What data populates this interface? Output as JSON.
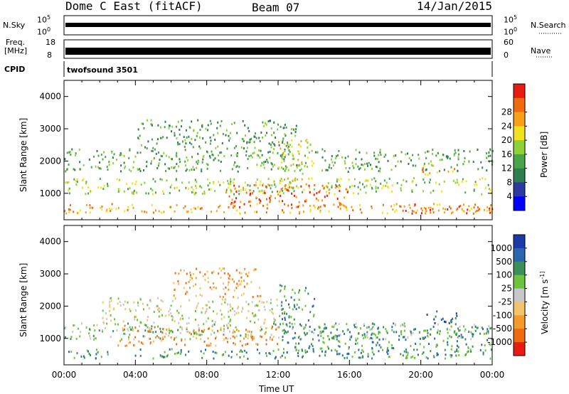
{
  "header": {
    "station": "Dome C East (fitACF)",
    "beam": "Beam 07",
    "date": "14/Jan/2015"
  },
  "side_labels": {
    "nsky": "N.Sky",
    "nsky_top": "10^5",
    "nsky_bottom": "10^0",
    "nsearch": "N.Search",
    "nsearch_top": "10^5",
    "nsearch_bottom": "10^0",
    "freq_line1": "Freq.",
    "freq_line2": "[MHz]",
    "freq_top": "18",
    "freq_bottom": "8",
    "nave": "Nave",
    "nave_top": "60",
    "nave_bottom": "0",
    "cpid": "CPID",
    "cpid_value": "twofsound 3501"
  },
  "chart_data": [
    {
      "type": "heatmap",
      "panel": "power",
      "ylabel": "Slant Range [km]",
      "ylim": [
        180,
        4500
      ],
      "yticks": [
        "1000",
        "2000",
        "3000",
        "4000"
      ],
      "xlim_hours": [
        0,
        24
      ],
      "colorbar": {
        "label": "Power [dB]",
        "ticks": [
          "4",
          "8",
          "12",
          "16",
          "20",
          "24",
          "28"
        ],
        "colors": [
          "#0000ff",
          "#2a3aa0",
          "#2e7d4f",
          "#4aa54a",
          "#8ed23a",
          "#f2e21e",
          "#f8a01a",
          "#f06a10",
          "#e81c10"
        ]
      },
      "bands": [
        {
          "x0": 0,
          "x1": 24,
          "y0": 400,
          "y1": 700,
          "level": 6
        },
        {
          "x0": 0,
          "x1": 24,
          "y0": 1000,
          "y1": 1500,
          "level": 4
        },
        {
          "x0": 0,
          "x1": 24,
          "y0": 1700,
          "y1": 2400,
          "level": 3
        },
        {
          "x0": 4,
          "x1": 13,
          "y0": 2400,
          "y1": 3300,
          "level": 3
        },
        {
          "x0": 9,
          "x1": 16,
          "y0": 600,
          "y1": 1300,
          "level": 7
        },
        {
          "x0": 12,
          "x1": 14,
          "y0": 1300,
          "y1": 2700,
          "level": 5
        },
        {
          "x0": 19,
          "x1": 24,
          "y0": 400,
          "y1": 700,
          "level": 7
        },
        {
          "x0": 20,
          "x1": 22,
          "y0": 1600,
          "y1": 1900,
          "level": 6
        }
      ]
    },
    {
      "type": "heatmap",
      "panel": "velocity",
      "ylabel": "Slant Range [km]",
      "ylim": [
        180,
        4500
      ],
      "yticks": [
        "1000",
        "2000",
        "3000",
        "4000"
      ],
      "xlim_hours": [
        0,
        24
      ],
      "xticks": [
        "00:00",
        "04:00",
        "08:00",
        "12:00",
        "16:00",
        "20:00",
        "00:00"
      ],
      "xlabel": "Time UT",
      "colorbar": {
        "label": "Velocity [m s^-1]",
        "ticks": [
          "1000",
          "500",
          "100",
          "25",
          "-25",
          "-100",
          "-500",
          "-1000"
        ],
        "colors": [
          "#1b3aa8",
          "#2c66b0",
          "#3a8f5a",
          "#6cc33c",
          "#c8c8c8",
          "#f4c36a",
          "#f29a2a",
          "#f06a10",
          "#e81c10"
        ]
      },
      "bands": [
        {
          "x0": 0,
          "x1": 24,
          "y0": 400,
          "y1": 700,
          "level": 2
        },
        {
          "x0": 0,
          "x1": 24,
          "y0": 1000,
          "y1": 1500,
          "level": 3
        },
        {
          "x0": 2,
          "x1": 12,
          "y0": 1500,
          "y1": 2300,
          "level": 4
        },
        {
          "x0": 3,
          "x1": 12,
          "y0": 800,
          "y1": 1400,
          "level": 6
        },
        {
          "x0": 6,
          "x1": 11,
          "y0": 2300,
          "y1": 3200,
          "level": 6
        },
        {
          "x0": 12,
          "x1": 24,
          "y0": 600,
          "y1": 1400,
          "level": 2
        },
        {
          "x0": 12,
          "x1": 14,
          "y0": 1400,
          "y1": 2700,
          "level": 2
        },
        {
          "x0": 20,
          "x1": 22,
          "y0": 1500,
          "y1": 1900,
          "level": 1
        }
      ]
    }
  ]
}
